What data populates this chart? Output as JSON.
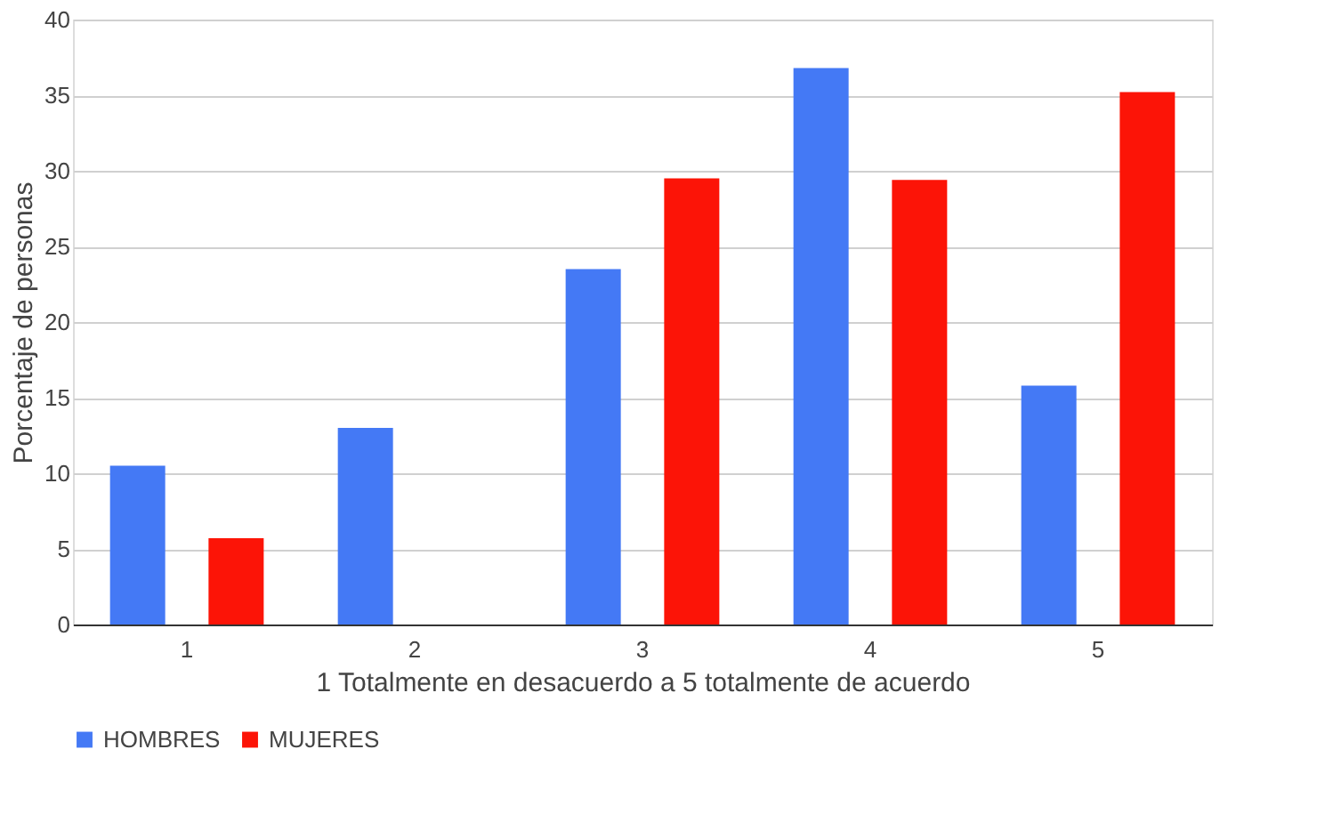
{
  "chart_data": {
    "type": "bar",
    "xlabel": "1 Totalmente en desacuerdo a 5 totalmente de acuerdo",
    "ylabel": "Porcentaje de personas",
    "categories": [
      "1",
      "2",
      "3",
      "4",
      "5"
    ],
    "series": [
      {
        "name": "HOMBRES",
        "color": "#4479f5",
        "values": [
          10.5,
          13,
          23.5,
          36.8,
          15.8
        ]
      },
      {
        "name": "MUJERES",
        "color": "#fc1407",
        "values": [
          5.7,
          0,
          29.5,
          29.4,
          35.2
        ]
      }
    ],
    "ylim": [
      0,
      40
    ],
    "yticks": [
      0,
      5,
      10,
      15,
      20,
      25,
      30,
      35,
      40
    ],
    "grid": "y",
    "legend": "bottom"
  }
}
